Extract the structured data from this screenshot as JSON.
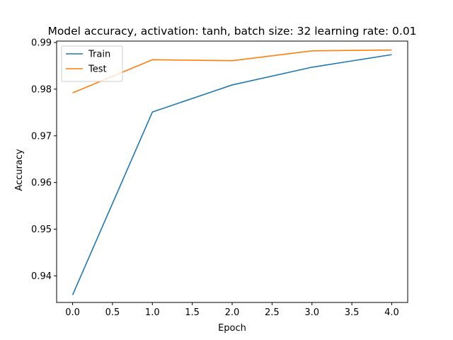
{
  "chart_data": {
    "type": "line",
    "title": "Model accuracy, activation: tanh, batch size: 32 learning rate: 0.01",
    "xlabel": "Epoch",
    "ylabel": "Accuracy",
    "x": [
      0,
      1,
      2,
      3,
      4
    ],
    "xlim": [
      -0.2,
      4.2
    ],
    "ylim": [
      0.9343,
      0.9903
    ],
    "xticks": [
      0.0,
      0.5,
      1.0,
      1.5,
      2.0,
      2.5,
      3.0,
      3.5,
      4.0
    ],
    "xtick_labels": [
      "0.0",
      "0.5",
      "1.0",
      "1.5",
      "2.0",
      "2.5",
      "3.0",
      "3.5",
      "4.0"
    ],
    "yticks": [
      0.94,
      0.95,
      0.96,
      0.97,
      0.98,
      0.99
    ],
    "ytick_labels": [
      "0.94",
      "0.95",
      "0.96",
      "0.97",
      "0.98",
      "0.99"
    ],
    "grid": false,
    "legend_position": "upper-left",
    "series": [
      {
        "name": "Train",
        "color": "#1f77b4",
        "values": [
          0.9359,
          0.9751,
          0.9809,
          0.9847,
          0.9874
        ]
      },
      {
        "name": "Test",
        "color": "#ff7f0e",
        "values": [
          0.9792,
          0.9863,
          0.9861,
          0.9882,
          0.9884
        ]
      }
    ]
  }
}
